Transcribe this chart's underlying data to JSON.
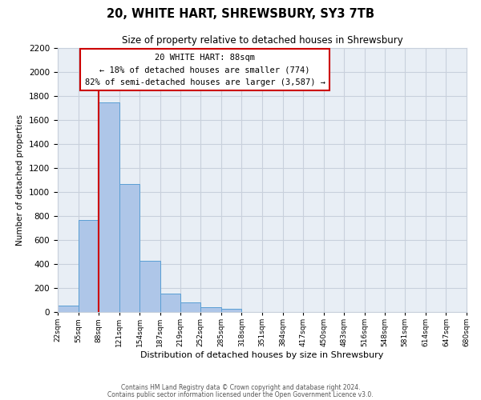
{
  "title": "20, WHITE HART, SHREWSBURY, SY3 7TB",
  "subtitle": "Size of property relative to detached houses in Shrewsbury",
  "xlabel": "Distribution of detached houses by size in Shrewsbury",
  "ylabel": "Number of detached properties",
  "bar_values": [
    55,
    770,
    1750,
    1070,
    430,
    155,
    80,
    40,
    25
  ],
  "bin_edges": [
    22,
    55,
    88,
    121,
    154,
    187,
    219,
    252,
    285,
    318,
    351,
    384,
    417,
    450,
    483,
    516,
    548,
    581,
    614,
    647,
    680
  ],
  "bin_labels": [
    "22sqm",
    "55sqm",
    "88sqm",
    "121sqm",
    "154sqm",
    "187sqm",
    "219sqm",
    "252sqm",
    "285sqm",
    "318sqm",
    "351sqm",
    "384sqm",
    "417sqm",
    "450sqm",
    "483sqm",
    "516sqm",
    "548sqm",
    "581sqm",
    "614sqm",
    "647sqm",
    "680sqm"
  ],
  "bar_color": "#aec6e8",
  "bar_edge_color": "#5a9fd4",
  "marker_value": 88,
  "marker_color": "#cc0000",
  "ylim": [
    0,
    2200
  ],
  "yticks": [
    0,
    200,
    400,
    600,
    800,
    1000,
    1200,
    1400,
    1600,
    1800,
    2000,
    2200
  ],
  "annotation_title": "20 WHITE HART: 88sqm",
  "annotation_line1": "← 18% of detached houses are smaller (774)",
  "annotation_line2": "82% of semi-detached houses are larger (3,587) →",
  "annotation_box_color": "#ffffff",
  "annotation_box_edge": "#cc0000",
  "footer1": "Contains HM Land Registry data © Crown copyright and database right 2024.",
  "footer2": "Contains public sector information licensed under the Open Government Licence v3.0.",
  "background_color": "#ffffff",
  "plot_bg_color": "#e8eef5",
  "grid_color": "#c8d0dc"
}
